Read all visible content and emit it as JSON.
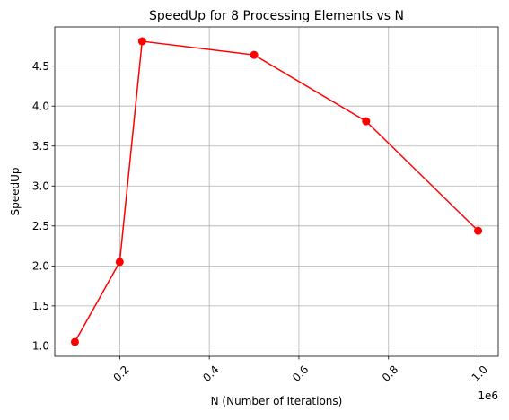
{
  "chart_data": {
    "type": "line",
    "title": "SpeedUp for 8 Processing Elements vs N",
    "xlabel": "N (Number of Iterations)",
    "ylabel": "SpeedUp",
    "x_offset_label": "1e6",
    "xlim": [
      0.055,
      1.045
    ],
    "ylim": [
      0.87,
      4.99
    ],
    "x_ticks": [
      0.2,
      0.4,
      0.6,
      0.8,
      1.0
    ],
    "x_tick_labels": [
      "0.2",
      "0.4",
      "0.6",
      "0.8",
      "1.0"
    ],
    "y_ticks": [
      1.0,
      1.5,
      2.0,
      2.5,
      3.0,
      3.5,
      4.0,
      4.5
    ],
    "y_tick_labels": [
      "1.0",
      "1.5",
      "2.0",
      "2.5",
      "3.0",
      "3.5",
      "4.0",
      "4.5"
    ],
    "grid": true,
    "series": [
      {
        "x": [
          0.1,
          0.2,
          0.25,
          0.5,
          0.75,
          1.0
        ],
        "y": [
          1.05,
          2.05,
          4.81,
          4.64,
          3.81,
          2.44
        ],
        "color": "#ff0000",
        "marker": "circle"
      }
    ]
  }
}
